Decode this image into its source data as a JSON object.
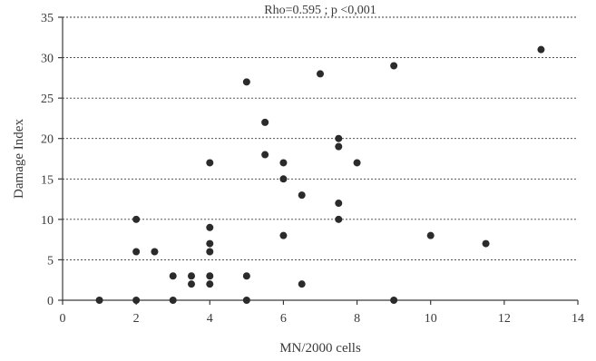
{
  "chart_data": {
    "type": "scatter",
    "title": "Rho=0.595 ; p <0,001",
    "xlabel": "MN/2000 cells",
    "ylabel": "Damage Index",
    "xlim": [
      0,
      14
    ],
    "ylim": [
      0,
      35
    ],
    "x_ticks": [
      0,
      2,
      4,
      6,
      8,
      10,
      12,
      14
    ],
    "y_ticks": [
      0,
      5,
      10,
      15,
      20,
      25,
      30,
      35
    ],
    "x_tick_labels": [
      "0",
      "2",
      "4",
      "6",
      "8",
      "10",
      "12",
      "14"
    ],
    "y_tick_labels": [
      "0",
      "5",
      "10",
      "15",
      "20",
      "25",
      "30",
      "35"
    ],
    "grid": "horizontal dotted",
    "point_color": "#2b2b2b",
    "points": [
      {
        "x": 1,
        "y": 0
      },
      {
        "x": 2,
        "y": 0
      },
      {
        "x": 2,
        "y": 6
      },
      {
        "x": 2,
        "y": 10
      },
      {
        "x": 2.5,
        "y": 6
      },
      {
        "x": 3,
        "y": 0
      },
      {
        "x": 3,
        "y": 3
      },
      {
        "x": 3.5,
        "y": 2
      },
      {
        "x": 3.5,
        "y": 3
      },
      {
        "x": 4,
        "y": 2
      },
      {
        "x": 4,
        "y": 3
      },
      {
        "x": 4,
        "y": 6
      },
      {
        "x": 4,
        "y": 7
      },
      {
        "x": 4,
        "y": 9
      },
      {
        "x": 4,
        "y": 17
      },
      {
        "x": 5,
        "y": 0
      },
      {
        "x": 5,
        "y": 3
      },
      {
        "x": 5,
        "y": 27
      },
      {
        "x": 5.5,
        "y": 18
      },
      {
        "x": 5.5,
        "y": 22
      },
      {
        "x": 6,
        "y": 8
      },
      {
        "x": 6,
        "y": 15
      },
      {
        "x": 6,
        "y": 17
      },
      {
        "x": 6.5,
        "y": 2
      },
      {
        "x": 6.5,
        "y": 13
      },
      {
        "x": 7,
        "y": 28
      },
      {
        "x": 7.5,
        "y": 10
      },
      {
        "x": 7.5,
        "y": 12
      },
      {
        "x": 7.5,
        "y": 19
      },
      {
        "x": 7.5,
        "y": 20
      },
      {
        "x": 8,
        "y": 17
      },
      {
        "x": 9,
        "y": 0
      },
      {
        "x": 9,
        "y": 29
      },
      {
        "x": 10,
        "y": 8
      },
      {
        "x": 11.5,
        "y": 7
      },
      {
        "x": 13,
        "y": 31
      }
    ]
  }
}
